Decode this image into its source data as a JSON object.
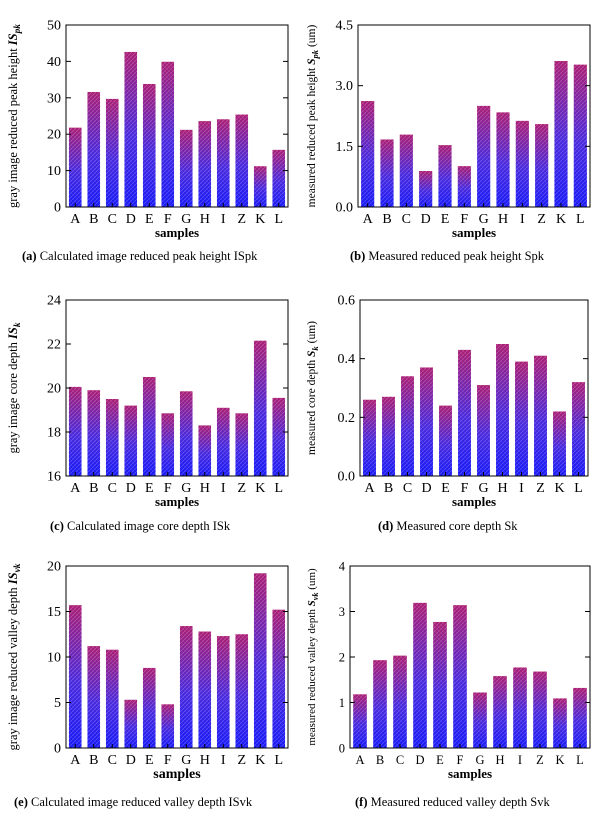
{
  "chart_data": [
    {
      "type": "bar",
      "ylabel_main": "gray image reduced peak height ",
      "ylabel_symbol": "IS",
      "ylabel_sub": "pk",
      "xlabel": "samples",
      "categories": [
        "A",
        "B",
        "C",
        "D",
        "E",
        "F",
        "G",
        "H",
        "I",
        "Z",
        "K",
        "L"
      ],
      "values": [
        21.8,
        31.6,
        29.7,
        42.6,
        33.8,
        39.9,
        21.2,
        23.6,
        24.1,
        25.4,
        11.2,
        15.7
      ],
      "ylim": [
        0,
        50
      ],
      "yticks": [
        0,
        10,
        20,
        30,
        40,
        50
      ],
      "ytick_labels": [
        "0",
        "10",
        "20",
        "30",
        "40",
        "50"
      ],
      "caption_tag": "(a)",
      "caption_text": " Calculated image reduced peak height ISpk"
    },
    {
      "type": "bar",
      "ylabel_main": "measured reduced peak height ",
      "ylabel_symbol": "S",
      "ylabel_sub": "pk",
      "ylabel_unit": "(um)",
      "xlabel": "samples",
      "categories": [
        "A",
        "B",
        "C",
        "D",
        "E",
        "F",
        "G",
        "H",
        "I",
        "Z",
        "K",
        "L"
      ],
      "values": [
        2.62,
        1.67,
        1.79,
        0.89,
        1.53,
        1.01,
        2.5,
        2.34,
        2.13,
        2.05,
        3.61,
        3.52
      ],
      "ylim": [
        0,
        4.5
      ],
      "yticks": [
        0,
        1.5,
        3.0,
        4.5
      ],
      "ytick_labels": [
        "0.0",
        "1.5",
        "3.0",
        "4.5"
      ],
      "caption_tag": "(b)",
      "caption_text": " Measured reduced peak height Spk"
    },
    {
      "type": "bar",
      "ylabel_main": "gray image core depth ",
      "ylabel_symbol": "IS",
      "ylabel_sub": "k",
      "xlabel": "samples",
      "categories": [
        "A",
        "B",
        "C",
        "D",
        "E",
        "F",
        "G",
        "H",
        "I",
        "Z",
        "K",
        "L"
      ],
      "values": [
        20.05,
        19.9,
        19.5,
        19.2,
        20.5,
        18.85,
        19.85,
        18.3,
        19.1,
        18.85,
        22.15,
        19.55
      ],
      "ylim": [
        16,
        24
      ],
      "yticks": [
        16,
        18,
        20,
        22,
        24
      ],
      "ytick_labels": [
        "16",
        "18",
        "20",
        "22",
        "24"
      ],
      "caption_tag": "(c)",
      "caption_text": " Calculated image core depth ISk"
    },
    {
      "type": "bar",
      "ylabel_main": "measured core depth ",
      "ylabel_symbol": "S",
      "ylabel_sub": "k",
      "ylabel_unit": "(um)",
      "xlabel": "samples",
      "categories": [
        "A",
        "B",
        "C",
        "D",
        "E",
        "F",
        "G",
        "H",
        "I",
        "Z",
        "K",
        "L"
      ],
      "values": [
        0.26,
        0.27,
        0.34,
        0.37,
        0.24,
        0.43,
        0.31,
        0.45,
        0.39,
        0.41,
        0.22,
        0.32
      ],
      "ylim": [
        0,
        0.6
      ],
      "yticks": [
        0,
        0.2,
        0.4,
        0.6
      ],
      "ytick_labels": [
        "0.0",
        "0.2",
        "0.4",
        "0.6"
      ],
      "caption_tag": "(d)",
      "caption_text": " Measured core depth Sk"
    },
    {
      "type": "bar",
      "ylabel_main": "gray image reduced valley depth ",
      "ylabel_symbol": "IS",
      "ylabel_sub": "vk",
      "xlabel": "samples",
      "categories": [
        "A",
        "B",
        "C",
        "D",
        "E",
        "F",
        "G",
        "H",
        "I",
        "Z",
        "K",
        "L"
      ],
      "values": [
        15.7,
        11.2,
        10.8,
        5.3,
        8.8,
        4.8,
        13.4,
        12.8,
        12.3,
        12.5,
        19.2,
        15.2
      ],
      "ylim": [
        0,
        20
      ],
      "yticks": [
        0,
        5,
        10,
        15,
        20
      ],
      "ytick_labels": [
        "0",
        "5",
        "10",
        "15",
        "20"
      ],
      "caption_tag": "(e)",
      "caption_text": " Calculated image reduced valley depth ISvk"
    },
    {
      "type": "bar",
      "ylabel_main": "measured reduced valley depth ",
      "ylabel_symbol": "S",
      "ylabel_sub": "vk",
      "ylabel_unit": "(um)",
      "xlabel": "samples",
      "categories": [
        "A",
        "B",
        "C",
        "D",
        "E",
        "F",
        "G",
        "H",
        "I",
        "Z",
        "K",
        "L"
      ],
      "values": [
        1.18,
        1.93,
        2.03,
        3.19,
        2.77,
        3.14,
        1.22,
        1.58,
        1.77,
        1.68,
        1.09,
        1.32
      ],
      "ylim": [
        0,
        4
      ],
      "yticks": [
        0,
        1,
        2,
        3,
        4
      ],
      "ytick_labels": [
        "0",
        "1",
        "2",
        "3",
        "4"
      ],
      "caption_tag": "(f)",
      "caption_text": " Measured reduced valley depth Svk"
    }
  ]
}
